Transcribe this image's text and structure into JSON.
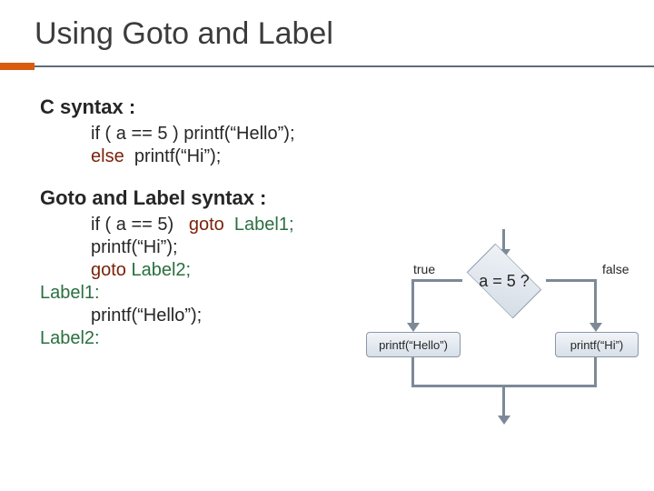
{
  "title": "Using Goto and Label",
  "section1": {
    "heading": "C syntax :",
    "line1_a": "if ( a == 5 ) printf(“Hello”);",
    "line2_kw": "else",
    "line2_rest": "  printf(“Hi”);"
  },
  "section2": {
    "heading": "Goto and Label syntax :",
    "l1a": "if ( a == 5)   ",
    "l1b": "goto",
    "l1c": "  ",
    "l1d": "Label1;",
    "l2": "printf(“Hi”);",
    "l3a": "goto",
    "l3b": " ",
    "l3c": "Label2;",
    "l4": "Label1:",
    "l5": "printf(“Hello”);",
    "l6": "Label2:"
  },
  "flow": {
    "condition": "a = 5 ?",
    "true_label": "true",
    "false_label": "false",
    "left_box": "printf(“Hello”)",
    "right_box": "printf(“Hi”)",
    "colors": {
      "accent": "#d95b0f",
      "rule": "#5f6b77",
      "arrow": "#7c8a97",
      "node_border": "#8a98a6",
      "node_fill_top": "#f2f5f9",
      "node_fill_bottom": "#d7dfe8",
      "keyword": "#7b220b",
      "label": "#2a6f3f",
      "text": "#262626"
    }
  }
}
